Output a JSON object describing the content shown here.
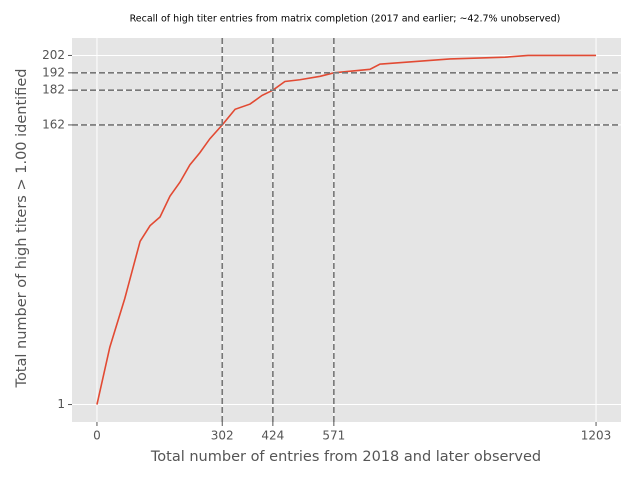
{
  "chart_data": {
    "type": "line",
    "title": "Recall of high titer entries from matrix completion (2017 and earlier; ~42.7% unobserved)",
    "x_label": "Total number of entries from 2018 and later observed",
    "y_label": "Total number of high titers > 1.00 identified",
    "x": [
      0,
      31,
      67,
      104,
      128,
      152,
      176,
      200,
      224,
      248,
      272,
      302,
      333,
      369,
      398,
      424,
      453,
      489,
      538,
      571,
      658,
      682,
      851,
      984,
      1039,
      1203
    ],
    "series": [
      {
        "name": "recall",
        "color": "#e24a33",
        "values": [
          1,
          34,
          62,
          95,
          104,
          109,
          121,
          129,
          139,
          146,
          154,
          162,
          171,
          174,
          179,
          182,
          187,
          188,
          190,
          192,
          194,
          197,
          200,
          201,
          202,
          202
        ]
      }
    ],
    "xlim": [
      -60.15,
      1263.15
    ],
    "ylim": [
      -9.05,
      212.05
    ],
    "xticks": [
      0,
      302,
      424,
      571,
      1203
    ],
    "yticks": [
      1,
      162,
      182,
      192,
      202
    ],
    "vlines": [
      302,
      424,
      571
    ],
    "hlines": [
      162,
      182,
      192
    ],
    "grid": true
  }
}
